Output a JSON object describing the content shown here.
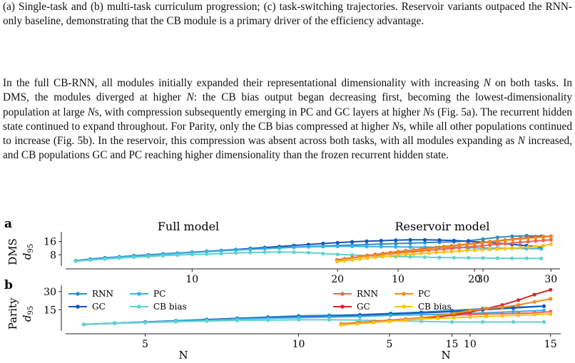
{
  "caption_tail": "(a) Single-task and (b) multi-task curriculum progression; (c) task-switching trajectories. Reservoir variants outpaced the RNN-only baseline, demonstrating that the CB module is a primary driver of the efficiency advantage.",
  "body_paragraph": [
    {
      "t": "In the full CB-RNN, all modules initially expanded their representational dimensionality with increasing "
    },
    {
      "t": "N",
      "i": true
    },
    {
      "t": " on both tasks. In DMS, the modules diverged at higher "
    },
    {
      "t": "N",
      "i": true
    },
    {
      "t": ": the CB bias output began decreasing first, becoming the lowest-dimensionality population at large "
    },
    {
      "t": "N",
      "i": true
    },
    {
      "t": "s, with compression subsequently emerging in PC and GC layers at higher "
    },
    {
      "t": "N",
      "i": true
    },
    {
      "t": "s (Fig. 5a). The recurrent hidden state continued to expand throughout. For Parity, only the CB bias compressed at higher "
    },
    {
      "t": "N",
      "i": true
    },
    {
      "t": "s, while all other populations continued to increase (Fig. 5b). In the reservoir, this compression was absent across both tasks, with all modules expanding as "
    },
    {
      "t": "N",
      "i": true
    },
    {
      "t": " increased, and CB populations GC and PC reaching higher dimensionality than the frozen recurrent hidden state."
    }
  ],
  "figure": {
    "panel_a_letter": "a",
    "panel_b_letter": "b",
    "row_a_label": "DMS",
    "row_b_label": "Parity",
    "y_var": "d",
    "y_sub": "95",
    "xlabel": "N",
    "col_titles": [
      "Full model",
      "Reservoir model"
    ]
  },
  "colors": {
    "full": {
      "RNN": "#2e8fc4",
      "GC": "#1554c0",
      "PC": "#3ab0e6",
      "CB bias": "#5fd3cf"
    },
    "reservoir": {
      "RNN": "#f4635a",
      "GC": "#d32a2a",
      "PC": "#f28a16",
      "CB bias": "#f7c21a"
    }
  },
  "chart_data": [
    {
      "type": "line",
      "panel": "a",
      "column": "Full model",
      "task": "DMS",
      "ylim": [
        3,
        21
      ],
      "yticks": [
        8,
        16
      ],
      "xlim": [
        1.5,
        35
      ],
      "xticks": [
        10,
        20,
        30
      ],
      "x": [
        2,
        3,
        4,
        5,
        6,
        7,
        8,
        9,
        10,
        11,
        12,
        13,
        14,
        15,
        16,
        17,
        18,
        19,
        20,
        21,
        22,
        23,
        24,
        25,
        26,
        27,
        28,
        29,
        30,
        31,
        32,
        33,
        34
      ],
      "series": [
        {
          "name": "RNN",
          "values": [
            4.5,
            5.5,
            6.2,
            6.8,
            7.5,
            8.0,
            8.6,
            9.1,
            9.6,
            10.1,
            10.6,
            11.0,
            11.5,
            11.9,
            12.3,
            12.6,
            13.0,
            13.3,
            13.6,
            13.9,
            14.2,
            14.5,
            14.8,
            15.0,
            15.3,
            15.6,
            15.8,
            16.5,
            17.5,
            18.5,
            19.2,
            19.5,
            19.2
          ]
        },
        {
          "name": "GC",
          "values": [
            4.3,
            5.2,
            6.0,
            6.7,
            7.3,
            7.9,
            8.4,
            8.9,
            9.5,
            10.0,
            10.6,
            11.2,
            11.8,
            12.4,
            13.0,
            13.6,
            14.2,
            14.8,
            15.3,
            15.8,
            16.2,
            16.5,
            16.8,
            17.0,
            17.0,
            16.9,
            16.6,
            16.2,
            15.6,
            15.0,
            14.3,
            13.5,
            12.5
          ]
        },
        {
          "name": "PC",
          "values": [
            4.3,
            5.1,
            5.9,
            6.6,
            7.2,
            7.8,
            8.4,
            8.9,
            9.4,
            9.9,
            10.4,
            10.9,
            11.3,
            11.7,
            12.1,
            12.5,
            12.8,
            13.0,
            13.1,
            13.1,
            13.0,
            12.9,
            12.8,
            12.7,
            12.6,
            12.5,
            12.4,
            12.3,
            12.1,
            12.0,
            11.9,
            11.8,
            11.7
          ]
        },
        {
          "name": "CB bias",
          "values": [
            4.2,
            4.9,
            5.5,
            6.1,
            6.6,
            7.0,
            7.5,
            7.9,
            8.2,
            8.5,
            8.8,
            9.1,
            9.4,
            9.6,
            9.7,
            9.6,
            9.3,
            8.8,
            8.3,
            7.9,
            7.5,
            7.2,
            7.0,
            6.8,
            6.6,
            6.4,
            6.3,
            6.2,
            6.1,
            6.0,
            5.9,
            5.9,
            5.8
          ]
        }
      ]
    },
    {
      "type": "line",
      "panel": "a",
      "column": "Reservoir model",
      "task": "DMS",
      "ylim": [
        3,
        21
      ],
      "xlim": [
        1.5,
        31
      ],
      "xticks": [
        10,
        20,
        30
      ],
      "x": [
        2,
        3,
        4,
        5,
        6,
        7,
        8,
        9,
        10,
        11,
        12,
        13,
        14,
        15,
        16,
        17,
        18,
        19,
        20,
        21,
        22,
        23,
        24,
        25,
        26,
        27,
        28,
        29,
        30
      ],
      "series": [
        {
          "name": "RNN",
          "values": [
            5.0,
            5.6,
            6.2,
            6.8,
            7.3,
            7.8,
            8.3,
            8.7,
            9.1,
            9.5,
            9.9,
            10.3,
            10.7,
            11.1,
            11.5,
            11.9,
            12.3,
            12.7,
            13.1,
            13.5,
            13.9,
            14.3,
            14.7,
            15.1,
            15.5,
            15.9,
            16.3,
            16.7,
            17.0
          ]
        },
        {
          "name": "GC",
          "values": [
            4.8,
            5.5,
            6.2,
            6.9,
            7.6,
            8.2,
            8.8,
            9.3,
            9.9,
            10.4,
            10.9,
            11.4,
            11.9,
            12.4,
            12.9,
            13.4,
            13.9,
            14.4,
            14.9,
            15.4,
            15.9,
            16.4,
            16.9,
            17.4,
            17.9,
            18.4,
            18.9,
            19.0,
            19.1
          ]
        },
        {
          "name": "PC",
          "values": [
            4.7,
            5.4,
            6.1,
            6.8,
            7.4,
            8.0,
            8.6,
            9.1,
            9.7,
            10.2,
            10.7,
            11.2,
            11.7,
            12.2,
            12.7,
            13.2,
            13.7,
            14.2,
            14.7,
            15.2,
            15.7,
            16.2,
            16.7,
            17.2,
            17.6,
            18.0,
            18.4,
            18.8,
            19.0
          ]
        },
        {
          "name": "CB bias",
          "values": [
            4.0,
            4.5,
            5.0,
            5.5,
            6.0,
            6.5,
            7.0,
            7.4,
            7.8,
            8.2,
            8.5,
            8.8,
            9.1,
            9.4,
            9.7,
            10.0,
            10.3,
            10.6,
            10.9,
            11.1,
            11.3,
            11.5,
            11.7,
            12.0,
            12.3,
            12.6,
            13.0,
            13.5,
            14.5
          ]
        }
      ]
    },
    {
      "type": "line",
      "panel": "b",
      "column": "Full model",
      "task": "Parity",
      "ylim": [
        0,
        34
      ],
      "yticks": [
        15,
        30
      ],
      "xlim": [
        2.5,
        18.5
      ],
      "xticks": [
        5,
        10,
        15
      ],
      "x": [
        3,
        4,
        5,
        6,
        7,
        8,
        9,
        10,
        11,
        12,
        13,
        14,
        15,
        16,
        17,
        18
      ],
      "series": [
        {
          "name": "RNN",
          "values": [
            3.0,
            4.0,
            5.0,
            6.0,
            7.0,
            8.0,
            9.0,
            10.0,
            10.5,
            11.0,
            12.0,
            13.0,
            14.5,
            16.0,
            17.0,
            18.0
          ]
        },
        {
          "name": "GC",
          "values": [
            3.0,
            4.0,
            5.0,
            6.0,
            7.0,
            8.0,
            8.5,
            9.0,
            9.5,
            10.5,
            11.5,
            12.5,
            13.5,
            15.0,
            16.5,
            18.0
          ]
        },
        {
          "name": "PC",
          "values": [
            3.0,
            4.0,
            4.8,
            5.8,
            6.5,
            7.5,
            8.0,
            8.5,
            9.0,
            9.5,
            10.5,
            11.0,
            11.5,
            12.5,
            13.5,
            14.5
          ]
        },
        {
          "name": "CB bias",
          "values": [
            3.0,
            3.8,
            4.5,
            5.2,
            5.8,
            6.3,
            6.5,
            6.8,
            6.8,
            6.5,
            6.0,
            5.5,
            5.0,
            5.0,
            5.0,
            5.0
          ]
        }
      ]
    },
    {
      "type": "line",
      "panel": "b",
      "column": "Reservoir model",
      "task": "Parity",
      "ylim": [
        0,
        34
      ],
      "xlim": [
        1.5,
        15.5
      ],
      "xticks": [
        5,
        10,
        15
      ],
      "x": [
        2,
        3,
        4,
        5,
        6,
        7,
        8,
        9,
        10,
        11,
        12,
        13,
        14,
        15
      ],
      "series": [
        {
          "name": "RNN",
          "values": [
            3.5,
            4.5,
            5.5,
            6.5,
            7.5,
            8.5,
            9.5,
            10.5,
            11.0,
            11.5,
            11.8,
            12.0,
            12.5,
            13.5
          ]
        },
        {
          "name": "GC",
          "values": [
            3.0,
            4.0,
            5.0,
            6.0,
            7.0,
            8.0,
            9.0,
            11.0,
            13.0,
            16.0,
            19.0,
            23.0,
            27.5,
            31.5
          ]
        },
        {
          "name": "PC",
          "values": [
            3.0,
            4.0,
            5.0,
            6.0,
            7.0,
            8.5,
            10.0,
            12.0,
            14.5,
            16.0,
            17.0,
            19.0,
            21.5,
            24.0
          ]
        },
        {
          "name": "CB bias",
          "values": [
            2.5,
            3.5,
            4.5,
            5.5,
            6.5,
            7.5,
            8.0,
            8.5,
            9.0,
            9.5,
            10.0,
            10.5,
            11.0,
            11.5
          ]
        }
      ]
    }
  ]
}
